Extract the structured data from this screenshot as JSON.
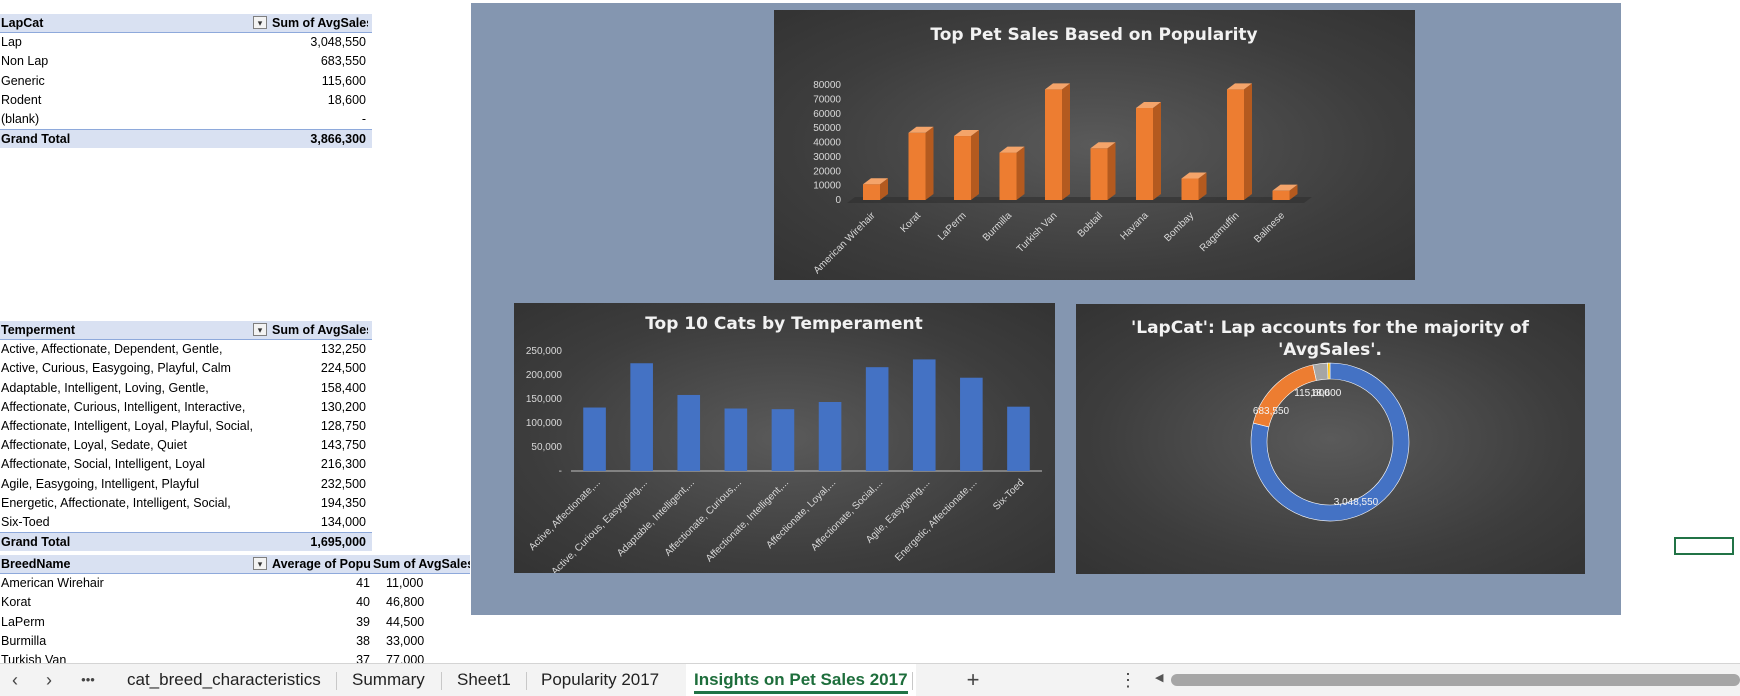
{
  "pivot1": {
    "headers": [
      "LapCat",
      "Sum of AvgSales"
    ],
    "rows": [
      [
        "Lap",
        "3,048,550"
      ],
      [
        "Non Lap",
        "683,550"
      ],
      [
        "Generic",
        "115,600"
      ],
      [
        "Rodent",
        "18,600"
      ],
      [
        "(blank)",
        "-"
      ]
    ],
    "total": [
      "Grand Total",
      "3,866,300"
    ]
  },
  "pivot2": {
    "headers": [
      "Temperment",
      "Sum of AvgSales"
    ],
    "rows": [
      [
        "Active, Affectionate, Dependent, Gentle,",
        "132,250"
      ],
      [
        "Active, Curious, Easygoing, Playful, Calm",
        "224,500"
      ],
      [
        "Adaptable, Intelligent, Loving, Gentle,",
        "158,400"
      ],
      [
        "Affectionate, Curious, Intelligent, Interactive,",
        "130,200"
      ],
      [
        "Affectionate, Intelligent, Loyal, Playful, Social,",
        "128,750"
      ],
      [
        "Affectionate, Loyal, Sedate, Quiet",
        "143,750"
      ],
      [
        "Affectionate, Social, Intelligent, Loyal",
        "216,300"
      ],
      [
        "Agile, Easygoing, Intelligent, Playful",
        "232,500"
      ],
      [
        "Energetic, Affectionate, Intelligent, Social,",
        "194,350"
      ],
      [
        "Six-Toed",
        "134,000"
      ]
    ],
    "total": [
      "Grand Total",
      "1,695,000"
    ]
  },
  "pivot3": {
    "headers": [
      "BreedName",
      "Average of Popu",
      "Sum of AvgSales"
    ],
    "rows": [
      [
        "American Wirehair",
        "41",
        "11,000"
      ],
      [
        "Korat",
        "40",
        "46,800"
      ],
      [
        "LaPerm",
        "39",
        "44,500"
      ],
      [
        "Burmilla",
        "38",
        "33,000"
      ],
      [
        "Turkish Van",
        "37",
        "77,000"
      ]
    ]
  },
  "chart_data": [
    {
      "type": "bar",
      "title": "Top Pet Sales Based on Popularity",
      "categories": [
        "American Wirehair",
        "Korat",
        "LaPerm",
        "Burmilla",
        "Turkish Van",
        "Bobtail",
        "Havana",
        "Bombay",
        "Ragamuffin",
        "Balinese"
      ],
      "values": [
        11000,
        46800,
        44500,
        33000,
        77000,
        36000,
        64000,
        15000,
        77000,
        6500
      ],
      "ylim": [
        0,
        80000
      ],
      "yticks": [
        "0",
        "10000",
        "20000",
        "30000",
        "40000",
        "50000",
        "60000",
        "70000",
        "80000"
      ],
      "color": "#ed7d31",
      "style": "3d-column"
    },
    {
      "type": "bar",
      "title": "Top 10 Cats by Temperament",
      "categories": [
        "Active, Affectionate,...",
        "Active, Curious, Easygoing,...",
        "Adaptable, Intelligent,...",
        "Affectionate, Curious,...",
        "Affectionate, Intelligent,...",
        "Affectionate, Loyal,...",
        "Affectionate, Social,...",
        "Agile, Easygoing,...",
        "Energetic, Affectionate,...",
        "Six-Toed"
      ],
      "values": [
        132250,
        224500,
        158400,
        130200,
        128750,
        143750,
        216300,
        232500,
        194350,
        134000
      ],
      "ylim": [
        0,
        250000
      ],
      "yticks": [
        "-",
        "50,000",
        "100,000",
        "150,000",
        "200,000",
        "250,000"
      ],
      "color": "#4472c4"
    },
    {
      "type": "pie",
      "variant": "doughnut",
      "title": "'LapCat': Lap accounts for the majority of 'AvgSales'.",
      "categories": [
        "Lap",
        "Non Lap",
        "Generic",
        "Rodent"
      ],
      "values": [
        3048550,
        683550,
        115600,
        18600
      ],
      "labels": [
        "3,048,550",
        "683,550",
        "115,600",
        "18,600"
      ],
      "colors": [
        "#4472c4",
        "#ed7d31",
        "#a5a5a5",
        "#ffc000"
      ]
    }
  ],
  "sheet_tabs": [
    "cat_breed_characteristics",
    "Summary",
    "Sheet1",
    "Popularity 2017",
    "Insights on Pet Sales 2017"
  ],
  "active_tab": "Insights on Pet Sales 2017",
  "nav": {
    "prev": "‹",
    "next": "›",
    "more": "•••",
    "add": "+",
    "options": "⋮",
    "scroll_left": "◀"
  }
}
